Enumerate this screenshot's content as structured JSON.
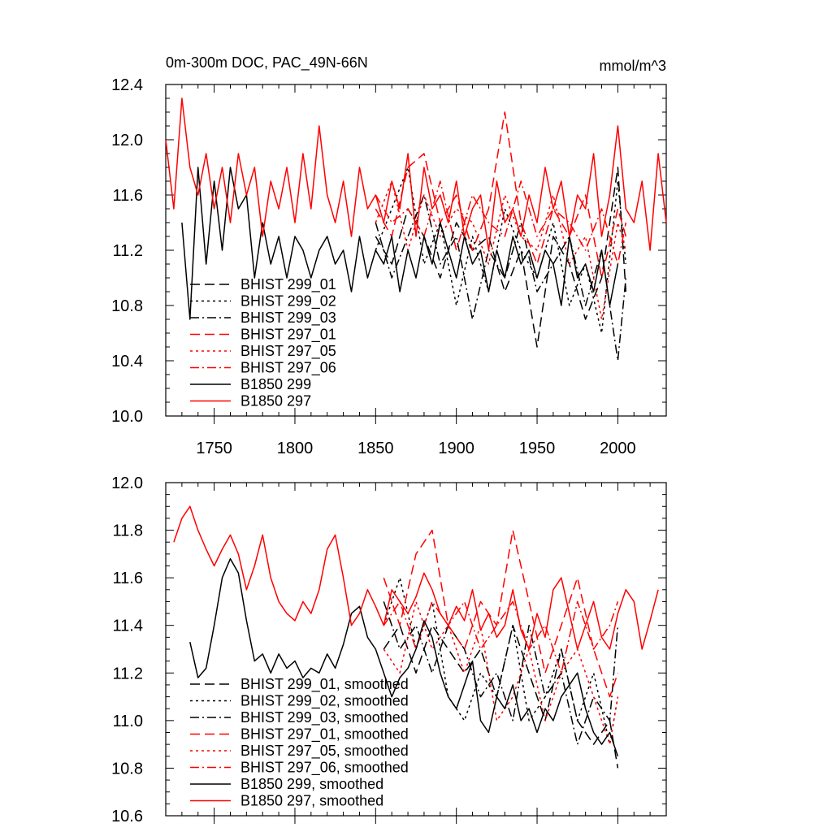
{
  "chart_data": [
    {
      "type": "line",
      "title": "0m-300m DOC, PAC_49N-66N",
      "units": "mmol/m^3",
      "xlim": [
        1720,
        2030
      ],
      "ylim": [
        10.0,
        12.4
      ],
      "xticks": [
        1750,
        1800,
        1850,
        1900,
        1950,
        2000
      ],
      "yticks": [
        "10.0",
        "10.4",
        "10.8",
        "11.2",
        "11.6",
        "12.0",
        "12.4"
      ],
      "legend_position": "lower-left",
      "series": [
        {
          "name": "BHIST 299_01",
          "color": "#000000",
          "dash": "longdash",
          "x": [
            1850,
            1860,
            1870,
            1880,
            1890,
            1900,
            1910,
            1920,
            1930,
            1940,
            1950,
            1960,
            1970,
            1980,
            1990,
            2000,
            2005
          ],
          "values": [
            11.3,
            11.1,
            11.5,
            11.3,
            11.0,
            11.4,
            11.2,
            11.3,
            10.9,
            11.2,
            10.5,
            11.3,
            11.1,
            10.7,
            11.0,
            11.8,
            10.9
          ]
        },
        {
          "name": "BHIST 299_02",
          "color": "#000000",
          "dash": "dot",
          "x": [
            1850,
            1860,
            1870,
            1880,
            1890,
            1900,
            1910,
            1920,
            1930,
            1940,
            1950,
            1960,
            1970,
            1980,
            1990,
            2000,
            2005
          ],
          "values": [
            11.2,
            11.5,
            11.8,
            11.1,
            11.4,
            10.8,
            11.3,
            10.9,
            11.5,
            11.2,
            11.0,
            11.4,
            10.8,
            11.1,
            10.6,
            11.7,
            11.1
          ]
        },
        {
          "name": "BHIST 299_03",
          "color": "#000000",
          "dash": "dashdot",
          "x": [
            1850,
            1860,
            1870,
            1880,
            1890,
            1900,
            1910,
            1920,
            1930,
            1940,
            1950,
            1960,
            1970,
            1980,
            1990,
            2000,
            2005
          ],
          "values": [
            11.4,
            11.0,
            11.3,
            11.6,
            11.1,
            11.3,
            10.7,
            11.2,
            11.0,
            11.4,
            10.9,
            11.1,
            11.3,
            10.8,
            11.2,
            10.4,
            11.0
          ]
        },
        {
          "name": "BHIST 297_01",
          "color": "#ff0000",
          "dash": "longdash",
          "x": [
            1850,
            1860,
            1870,
            1880,
            1890,
            1900,
            1910,
            1920,
            1930,
            1940,
            1950,
            1960,
            1970,
            1980,
            1990,
            2000,
            2005
          ],
          "values": [
            11.5,
            11.3,
            11.8,
            11.9,
            11.4,
            11.6,
            11.2,
            11.5,
            12.2,
            11.4,
            11.1,
            11.5,
            11.3,
            11.6,
            11.0,
            11.5,
            11.3
          ]
        },
        {
          "name": "BHIST 297_05",
          "color": "#ff0000",
          "dash": "dot",
          "x": [
            1850,
            1860,
            1870,
            1880,
            1890,
            1900,
            1910,
            1920,
            1930,
            1940,
            1950,
            1960,
            1970,
            1980,
            1990,
            2000,
            2005
          ],
          "values": [
            11.4,
            11.7,
            11.2,
            11.6,
            11.3,
            11.5,
            11.4,
            11.1,
            11.6,
            11.3,
            11.2,
            11.6,
            11.1,
            11.3,
            10.7,
            11.4,
            11.2
          ]
        },
        {
          "name": "BHIST 297_06",
          "color": "#ff0000",
          "dash": "dashdot",
          "x": [
            1850,
            1860,
            1870,
            1880,
            1890,
            1900,
            1910,
            1920,
            1930,
            1940,
            1950,
            1960,
            1970,
            1980,
            1990,
            2000,
            2005
          ],
          "values": [
            11.6,
            11.4,
            11.5,
            11.3,
            11.7,
            11.2,
            11.6,
            11.4,
            11.3,
            11.7,
            11.3,
            11.5,
            11.4,
            11.2,
            11.5,
            11.1,
            11.4
          ]
        },
        {
          "name": "B1850 299",
          "color": "#000000",
          "dash": "solid",
          "x": [
            1730,
            1735,
            1740,
            1745,
            1750,
            1755,
            1760,
            1765,
            1770,
            1775,
            1780,
            1785,
            1790,
            1795,
            1800,
            1805,
            1810,
            1815,
            1820,
            1825,
            1830,
            1835,
            1840,
            1845,
            1850,
            1855,
            1860,
            1865,
            1870,
            1875,
            1880,
            1885,
            1890,
            1895,
            1900,
            1905,
            1910,
            1915,
            1920,
            1925,
            1930,
            1935,
            1940,
            1945,
            1950,
            1955,
            1960,
            1965,
            1970,
            1975,
            1980,
            1985,
            1990,
            1995,
            2000
          ],
          "values": [
            11.4,
            10.7,
            11.8,
            11.1,
            11.7,
            11.2,
            11.8,
            11.5,
            11.6,
            11.0,
            11.4,
            11.1,
            11.3,
            11.0,
            11.3,
            11.2,
            11.0,
            11.2,
            11.3,
            11.1,
            11.2,
            10.9,
            11.3,
            11.0,
            11.2,
            11.1,
            11.3,
            10.9,
            11.2,
            11.0,
            11.3,
            11.1,
            11.4,
            11.2,
            11.0,
            11.3,
            11.1,
            11.2,
            10.9,
            11.2,
            11.0,
            11.3,
            11.1,
            11.2,
            11.0,
            11.2,
            11.1,
            10.8,
            11.3,
            11.0,
            11.1,
            10.9,
            11.2,
            10.8,
            11.1
          ]
        },
        {
          "name": "B1850 297",
          "color": "#ff0000",
          "dash": "solid",
          "x": [
            1720,
            1725,
            1730,
            1735,
            1740,
            1745,
            1750,
            1755,
            1760,
            1765,
            1770,
            1775,
            1780,
            1785,
            1790,
            1795,
            1800,
            1805,
            1810,
            1815,
            1820,
            1825,
            1830,
            1835,
            1840,
            1845,
            1850,
            1855,
            1860,
            1865,
            1870,
            1875,
            1880,
            1885,
            1890,
            1895,
            1900,
            1905,
            1910,
            1915,
            1920,
            1925,
            1930,
            1935,
            1940,
            1945,
            1950,
            1955,
            1960,
            1965,
            1970,
            1975,
            1980,
            1985,
            1990,
            1995,
            2000,
            2005,
            2010,
            2015,
            2020,
            2025,
            2030
          ],
          "values": [
            12.0,
            11.5,
            12.3,
            11.8,
            11.6,
            11.9,
            11.5,
            11.8,
            11.4,
            11.9,
            11.6,
            11.8,
            11.3,
            11.7,
            11.5,
            11.8,
            11.4,
            11.9,
            11.5,
            12.1,
            11.6,
            11.4,
            11.7,
            11.3,
            11.8,
            11.5,
            11.6,
            11.4,
            11.7,
            11.5,
            11.9,
            11.3,
            11.8,
            11.5,
            11.6,
            11.4,
            11.7,
            11.3,
            11.5,
            11.6,
            11.2,
            11.7,
            11.4,
            11.5,
            11.3,
            11.6,
            11.4,
            11.8,
            11.5,
            11.7,
            11.3,
            11.6,
            11.5,
            11.9,
            11.3,
            11.6,
            12.1,
            11.5,
            11.4,
            11.7,
            11.2,
            11.9,
            11.4
          ]
        }
      ]
    },
    {
      "type": "line",
      "xlim": [
        1720,
        2030
      ],
      "ylim": [
        10.6,
        12.0
      ],
      "yticks": [
        "10.6",
        "10.8",
        "11.0",
        "11.2",
        "11.4",
        "11.6",
        "11.8",
        "12.0"
      ],
      "legend_position": "lower-left",
      "series": [
        {
          "name": "BHIST 299_01, smoothed",
          "color": "#000000",
          "dash": "longdash",
          "x": [
            1855,
            1865,
            1875,
            1885,
            1895,
            1905,
            1915,
            1925,
            1935,
            1945,
            1955,
            1965,
            1975,
            1985,
            1995,
            2000
          ],
          "values": [
            11.3,
            11.4,
            11.2,
            11.4,
            11.3,
            11.2,
            11.3,
            11.1,
            11.4,
            11.2,
            11.0,
            11.3,
            11.0,
            10.9,
            11.0,
            10.8
          ]
        },
        {
          "name": "BHIST 299_02, smoothed",
          "color": "#000000",
          "dash": "dot",
          "x": [
            1855,
            1865,
            1875,
            1885,
            1895,
            1905,
            1915,
            1925,
            1935,
            1945,
            1955,
            1965,
            1975,
            1985,
            1995,
            2000
          ],
          "values": [
            11.4,
            11.6,
            11.3,
            11.5,
            11.1,
            11.0,
            11.2,
            11.1,
            11.4,
            11.0,
            11.1,
            11.3,
            11.0,
            11.2,
            10.9,
            11.1
          ]
        },
        {
          "name": "BHIST 299_03, smoothed",
          "color": "#000000",
          "dash": "dashdot",
          "x": [
            1855,
            1865,
            1875,
            1885,
            1895,
            1905,
            1915,
            1925,
            1935,
            1945,
            1955,
            1965,
            1975,
            1985,
            1995,
            2000
          ],
          "values": [
            11.5,
            11.3,
            11.4,
            11.2,
            11.4,
            11.3,
            11.1,
            11.2,
            11.0,
            11.4,
            11.1,
            11.2,
            10.9,
            11.1,
            11.0,
            11.4
          ]
        },
        {
          "name": "BHIST 297_01, smoothed",
          "color": "#ff0000",
          "dash": "longdash",
          "x": [
            1855,
            1865,
            1875,
            1885,
            1895,
            1905,
            1915,
            1925,
            1935,
            1945,
            1955,
            1965,
            1975,
            1985,
            1995,
            2000
          ],
          "values": [
            11.6,
            11.4,
            11.7,
            11.8,
            11.4,
            11.3,
            11.5,
            11.4,
            11.8,
            11.5,
            11.2,
            11.4,
            11.6,
            11.3,
            11.1,
            11.2
          ]
        },
        {
          "name": "BHIST 297_05, smoothed",
          "color": "#ff0000",
          "dash": "dot",
          "x": [
            1855,
            1865,
            1875,
            1885,
            1895,
            1905,
            1915,
            1925,
            1935,
            1945,
            1955,
            1965,
            1975,
            1985,
            1995,
            2000
          ],
          "values": [
            11.3,
            11.2,
            11.5,
            11.3,
            11.4,
            11.2,
            11.4,
            11.0,
            11.1,
            11.3,
            11.0,
            11.2,
            11.3,
            11.1,
            10.9,
            11.1
          ]
        },
        {
          "name": "BHIST 297_06, smoothed",
          "color": "#ff0000",
          "dash": "dashdot",
          "x": [
            1855,
            1865,
            1875,
            1885,
            1895,
            1905,
            1915,
            1925,
            1935,
            1945,
            1955,
            1965,
            1975,
            1985,
            1995,
            2000
          ],
          "values": [
            11.4,
            11.5,
            11.3,
            11.5,
            11.4,
            11.5,
            11.3,
            11.4,
            11.5,
            11.3,
            11.4,
            11.2,
            11.5,
            11.3,
            11.4,
            11.5
          ]
        },
        {
          "name": "B1850 299, smoothed",
          "color": "#000000",
          "dash": "solid",
          "x": [
            1735,
            1740,
            1745,
            1750,
            1755,
            1760,
            1765,
            1770,
            1775,
            1780,
            1785,
            1790,
            1795,
            1800,
            1805,
            1810,
            1815,
            1820,
            1825,
            1830,
            1835,
            1840,
            1845,
            1850,
            1855,
            1860,
            1865,
            1870,
            1875,
            1880,
            1885,
            1890,
            1895,
            1900,
            1905,
            1910,
            1915,
            1920,
            1925,
            1930,
            1935,
            1940,
            1945,
            1950,
            1955,
            1960,
            1965,
            1970,
            1975,
            1980,
            1985,
            1990,
            1995,
            2000
          ],
          "values": [
            11.33,
            11.18,
            11.22,
            11.4,
            11.6,
            11.68,
            11.62,
            11.42,
            11.25,
            11.28,
            11.2,
            11.28,
            11.22,
            11.25,
            11.18,
            11.22,
            11.2,
            11.28,
            11.22,
            11.32,
            11.45,
            11.48,
            11.35,
            11.3,
            11.2,
            11.1,
            11.18,
            11.22,
            11.3,
            11.42,
            11.35,
            11.2,
            11.1,
            11.05,
            11.15,
            11.25,
            11.0,
            10.95,
            11.1,
            11.05,
            11.15,
            11.0,
            11.05,
            10.95,
            11.05,
            11.0,
            11.1,
            11.15,
            11.2,
            11.05,
            10.95,
            10.9,
            10.95,
            10.85
          ]
        },
        {
          "name": "B1850 297, smoothed",
          "color": "#ff0000",
          "dash": "solid",
          "x": [
            1725,
            1730,
            1735,
            1740,
            1745,
            1750,
            1755,
            1760,
            1765,
            1770,
            1775,
            1780,
            1785,
            1790,
            1795,
            1800,
            1805,
            1810,
            1815,
            1820,
            1825,
            1830,
            1835,
            1840,
            1845,
            1850,
            1855,
            1860,
            1865,
            1870,
            1875,
            1880,
            1885,
            1890,
            1895,
            1900,
            1905,
            1910,
            1915,
            1920,
            1925,
            1930,
            1935,
            1940,
            1945,
            1950,
            1955,
            1960,
            1965,
            1970,
            1975,
            1980,
            1985,
            1990,
            1995,
            2000,
            2005,
            2010,
            2015,
            2020,
            2025
          ],
          "values": [
            11.75,
            11.85,
            11.9,
            11.8,
            11.72,
            11.65,
            11.72,
            11.78,
            11.7,
            11.55,
            11.65,
            11.78,
            11.6,
            11.5,
            11.45,
            11.42,
            11.5,
            11.45,
            11.55,
            11.72,
            11.78,
            11.6,
            11.4,
            11.45,
            11.55,
            11.48,
            11.4,
            11.55,
            11.5,
            11.45,
            11.52,
            11.62,
            11.55,
            11.45,
            11.4,
            11.48,
            11.42,
            11.55,
            11.38,
            11.45,
            11.35,
            11.4,
            11.55,
            11.38,
            11.3,
            11.45,
            11.35,
            11.55,
            11.6,
            11.45,
            11.3,
            11.4,
            11.5,
            11.35,
            11.3,
            11.45,
            11.55,
            11.5,
            11.3,
            11.42,
            11.55
          ]
        }
      ]
    }
  ]
}
